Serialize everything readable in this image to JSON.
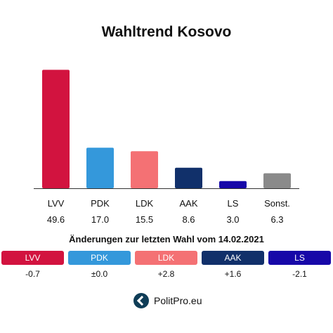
{
  "chart_data": {
    "type": "bar",
    "title": "Wahltrend Kosovo",
    "categories": [
      "LVV",
      "PDK",
      "LDK",
      "AAK",
      "LS",
      "Sonst."
    ],
    "values": [
      49.6,
      17.0,
      15.5,
      8.6,
      3.0,
      6.3
    ],
    "value_labels": [
      "49.6",
      "17.0",
      "15.5",
      "8.6",
      "3.0",
      "6.3"
    ],
    "colors": [
      "#d2133f",
      "#3498db",
      "#f47174",
      "#11306a",
      "#1708a8",
      "#8a8a8a"
    ],
    "ylim": [
      0,
      50
    ],
    "grid": false,
    "xlabel": "",
    "ylabel": ""
  },
  "changes": {
    "heading": "Änderungen zur letzten Wahl vom 14.02.2021",
    "items": [
      {
        "label": "LVV",
        "value": "-0.7",
        "color": "#d2133f"
      },
      {
        "label": "PDK",
        "value": "±0.0",
        "color": "#3498db"
      },
      {
        "label": "LDK",
        "value": "+2.8",
        "color": "#f47174"
      },
      {
        "label": "AAK",
        "value": "+1.6",
        "color": "#11306a"
      },
      {
        "label": "LS",
        "value": "-2.1",
        "color": "#1708a8"
      }
    ]
  },
  "brand": {
    "name": "PolitPro.eu",
    "logo_icon": "politpro-logo-icon"
  }
}
